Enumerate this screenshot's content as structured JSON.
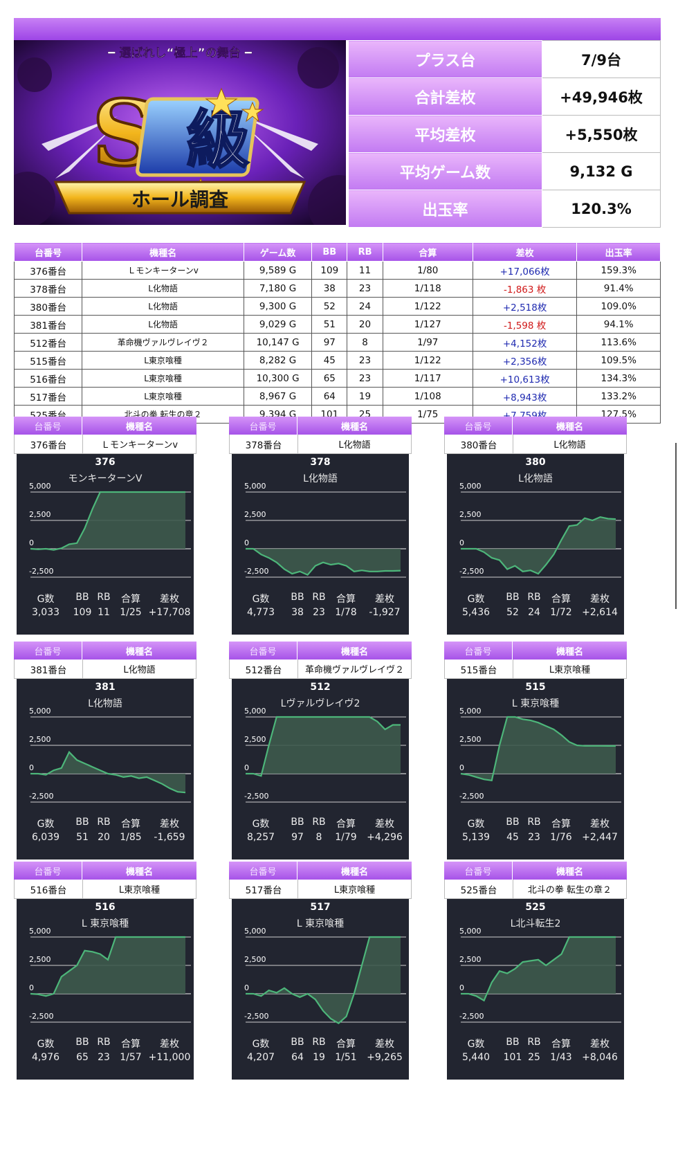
{
  "banner": {
    "tagline": "━ 選ばれし“極上”の舞台 ━",
    "big_letter": "S",
    "kanji": "級",
    "ribbon": "ホール調査"
  },
  "summary": [
    {
      "label": "プラス台",
      "value": "7/9台"
    },
    {
      "label": "合計差枚",
      "value": "+49,946枚"
    },
    {
      "label": "平均差枚",
      "value": "+5,550枚"
    },
    {
      "label": "平均ゲーム数",
      "value": "9,132 G"
    },
    {
      "label": "出玉率",
      "value": "120.3%"
    }
  ],
  "table": {
    "headers": [
      "台番号",
      "機種名",
      "ゲーム数",
      "BB",
      "RB",
      "合算",
      "差枚",
      "出玉率"
    ],
    "rows": [
      [
        "376番台",
        "Ｌモンキーターンⅴ",
        "9,589 G",
        "109",
        "11",
        "1/80",
        "+17,066枚",
        "159.3%"
      ],
      [
        "378番台",
        "L化物語",
        "7,180 G",
        "38",
        "23",
        "1/118",
        "-1,863 枚",
        "91.4%"
      ],
      [
        "380番台",
        "L化物語",
        "9,300 G",
        "52",
        "24",
        "1/122",
        "+2,518枚",
        "109.0%"
      ],
      [
        "381番台",
        "L化物語",
        "9,029 G",
        "51",
        "20",
        "1/127",
        "-1,598 枚",
        "94.1%"
      ],
      [
        "512番台",
        "革命機ヴァルヴレイヴ２",
        "10,147 G",
        "97",
        "8",
        "1/97",
        "+4,152枚",
        "113.6%"
      ],
      [
        "515番台",
        "L東京喰種",
        "8,282 G",
        "45",
        "23",
        "1/122",
        "+2,356枚",
        "109.5%"
      ],
      [
        "516番台",
        "L東京喰種",
        "10,300 G",
        "65",
        "23",
        "1/117",
        "+10,613枚",
        "134.3%"
      ],
      [
        "517番台",
        "L東京喰種",
        "8,967 G",
        "64",
        "19",
        "1/108",
        "+8,943枚",
        "133.2%"
      ],
      [
        "525番台",
        "北斗の拳 転生の章２",
        "9,394 G",
        "101",
        "25",
        "1/75",
        "+7,759枚",
        "127.5%"
      ]
    ]
  },
  "card_headers": {
    "num": "台番号",
    "model": "機種名"
  },
  "stat_labels": [
    "G数",
    "BB",
    "RB",
    "合算",
    "差枚"
  ],
  "colors": {
    "accent": "#a653e8",
    "panel_bg": "#222530",
    "line": "#4db67a",
    "fill": "#3d5a4c",
    "plus": "#1f2ab0",
    "minus": "#d01818"
  },
  "chart_data": [
    {
      "type": "area",
      "title": "376",
      "subtitle": "モンキーターンV",
      "y_ticks": [
        "5,000",
        "2,500",
        "0",
        "-2,500"
      ],
      "ylim": [
        -2500,
        5000
      ],
      "x": [
        0,
        0.05,
        0.1,
        0.15,
        0.2,
        0.25,
        0.3,
        0.35,
        0.4,
        0.45,
        0.5,
        0.55,
        0.6,
        0.65,
        0.7,
        0.75,
        0.8,
        0.85,
        0.9,
        0.95,
        1.0
      ],
      "y": [
        0,
        -50,
        0,
        -100,
        50,
        400,
        500,
        1800,
        3500,
        5000,
        5000,
        5000,
        5000,
        5000,
        5000,
        5000,
        5000,
        5000,
        5000,
        5000,
        5000
      ],
      "stats": {
        "g": "3,033",
        "bb": "109",
        "rb": "11",
        "gosan": "1/25",
        "samai": "+17,708"
      }
    },
    {
      "type": "area",
      "title": "378",
      "subtitle": "L化物語",
      "y_ticks": [
        "5,000",
        "2,500",
        "0",
        "-2,500"
      ],
      "ylim": [
        -2500,
        5000
      ],
      "x": [
        0,
        0.05,
        0.1,
        0.15,
        0.2,
        0.25,
        0.3,
        0.35,
        0.4,
        0.45,
        0.5,
        0.55,
        0.6,
        0.65,
        0.7,
        0.75,
        0.8,
        0.85,
        0.9,
        0.95,
        1.0
      ],
      "y": [
        0,
        0,
        -500,
        -800,
        -1200,
        -1800,
        -2200,
        -2000,
        -2300,
        -1500,
        -1200,
        -1400,
        -1300,
        -1500,
        -2000,
        -1900,
        -2000,
        -2000,
        -1950,
        -1950,
        -1927
      ],
      "stats": {
        "g": "4,773",
        "bb": "38",
        "rb": "23",
        "gosan": "1/78",
        "samai": "-1,927"
      }
    },
    {
      "type": "area",
      "title": "380",
      "subtitle": "L化物語",
      "y_ticks": [
        "5,000",
        "2,500",
        "0",
        "-2,500"
      ],
      "ylim": [
        -2500,
        5000
      ],
      "x": [
        0,
        0.05,
        0.1,
        0.15,
        0.2,
        0.25,
        0.3,
        0.35,
        0.4,
        0.45,
        0.5,
        0.55,
        0.6,
        0.65,
        0.7,
        0.75,
        0.8,
        0.85,
        0.9,
        0.95,
        1.0
      ],
      "y": [
        0,
        0,
        0,
        -300,
        -800,
        -1000,
        -1800,
        -1500,
        -2000,
        -1900,
        -2200,
        -1400,
        -500,
        800,
        2000,
        2100,
        2700,
        2500,
        2800,
        2650,
        2614
      ],
      "stats": {
        "g": "5,436",
        "bb": "52",
        "rb": "24",
        "gosan": "1/72",
        "samai": "+2,614"
      }
    },
    {
      "type": "area",
      "title": "381",
      "subtitle": "L化物語",
      "y_ticks": [
        "5,000",
        "2,500",
        "0",
        "-2,500"
      ],
      "ylim": [
        -2500,
        5000
      ],
      "x": [
        0,
        0.05,
        0.1,
        0.15,
        0.2,
        0.25,
        0.3,
        0.35,
        0.4,
        0.45,
        0.5,
        0.55,
        0.6,
        0.65,
        0.7,
        0.75,
        0.8,
        0.85,
        0.9,
        0.95,
        1.0
      ],
      "y": [
        0,
        0,
        -100,
        300,
        500,
        1900,
        1200,
        900,
        600,
        300,
        0,
        -100,
        -300,
        -200,
        -400,
        -300,
        -600,
        -900,
        -1300,
        -1600,
        -1659
      ],
      "stats": {
        "g": "6,039",
        "bb": "51",
        "rb": "20",
        "gosan": "1/85",
        "samai": "-1,659"
      }
    },
    {
      "type": "area",
      "title": "512",
      "subtitle": "Lヴァルヴレイヴ2",
      "y_ticks": [
        "5,000",
        "2,500",
        "0",
        "-2,500"
      ],
      "ylim": [
        -2500,
        5000
      ],
      "x": [
        0,
        0.05,
        0.1,
        0.15,
        0.2,
        0.25,
        0.3,
        0.35,
        0.4,
        0.45,
        0.5,
        0.55,
        0.6,
        0.65,
        0.7,
        0.75,
        0.8,
        0.85,
        0.9,
        0.95,
        1.0
      ],
      "y": [
        0,
        0,
        -200,
        2500,
        5000,
        5000,
        5000,
        5000,
        5000,
        5000,
        5000,
        5000,
        5000,
        5000,
        5000,
        5000,
        5000,
        4600,
        3900,
        4300,
        4296
      ],
      "stats": {
        "g": "8,257",
        "bb": "97",
        "rb": "8",
        "gosan": "1/79",
        "samai": "+4,296"
      }
    },
    {
      "type": "area",
      "title": "515",
      "subtitle": "L 東京喰種",
      "y_ticks": [
        "5,000",
        "2,500",
        "0",
        "-2,500"
      ],
      "ylim": [
        -2500,
        5000
      ],
      "x": [
        0,
        0.05,
        0.1,
        0.15,
        0.2,
        0.25,
        0.3,
        0.35,
        0.4,
        0.45,
        0.5,
        0.55,
        0.6,
        0.65,
        0.7,
        0.75,
        0.8,
        0.85,
        0.9,
        0.95,
        1.0
      ],
      "y": [
        0,
        -100,
        -300,
        -500,
        -600,
        2500,
        5000,
        5000,
        4800,
        4700,
        4500,
        4200,
        3900,
        3400,
        2800,
        2500,
        2450,
        2450,
        2450,
        2447,
        2447
      ],
      "stats": {
        "g": "5,139",
        "bb": "45",
        "rb": "23",
        "gosan": "1/76",
        "samai": "+2,447"
      }
    },
    {
      "type": "area",
      "title": "516",
      "subtitle": "L 東京喰種",
      "y_ticks": [
        "5,000",
        "2,500",
        "0",
        "-2,500"
      ],
      "ylim": [
        -2500,
        5000
      ],
      "x": [
        0,
        0.05,
        0.1,
        0.15,
        0.2,
        0.25,
        0.3,
        0.35,
        0.4,
        0.45,
        0.5,
        0.55,
        0.6,
        0.65,
        0.7,
        0.75,
        0.8,
        0.85,
        0.9,
        0.95,
        1.0
      ],
      "y": [
        0,
        -50,
        -200,
        0,
        1500,
        2000,
        2500,
        3800,
        3700,
        3500,
        3000,
        5000,
        5000,
        5000,
        5000,
        5000,
        5000,
        5000,
        5000,
        5000,
        5000
      ],
      "stats": {
        "g": "4,976",
        "bb": "65",
        "rb": "23",
        "gosan": "1/57",
        "samai": "+11,000"
      }
    },
    {
      "type": "area",
      "title": "517",
      "subtitle": "L 東京喰種",
      "y_ticks": [
        "5,000",
        "2,500",
        "0",
        "-2,500"
      ],
      "ylim": [
        -2500,
        5000
      ],
      "x": [
        0,
        0.05,
        0.1,
        0.15,
        0.2,
        0.25,
        0.3,
        0.35,
        0.4,
        0.45,
        0.5,
        0.55,
        0.6,
        0.65,
        0.7,
        0.75,
        0.8,
        0.85,
        0.9,
        0.95,
        1.0
      ],
      "y": [
        0,
        0,
        -200,
        300,
        100,
        500,
        0,
        -300,
        0,
        -500,
        -1500,
        -2200,
        -2600,
        -2000,
        0,
        2500,
        5000,
        5000,
        5000,
        5000,
        5000
      ],
      "stats": {
        "g": "4,207",
        "bb": "64",
        "rb": "19",
        "gosan": "1/51",
        "samai": "+9,265"
      }
    },
    {
      "type": "area",
      "title": "525",
      "subtitle": "L北斗転生2",
      "y_ticks": [
        "5,000",
        "2,500",
        "0",
        "-2,500"
      ],
      "ylim": [
        -2500,
        5000
      ],
      "x": [
        0,
        0.05,
        0.1,
        0.15,
        0.2,
        0.25,
        0.3,
        0.35,
        0.4,
        0.45,
        0.5,
        0.55,
        0.6,
        0.65,
        0.7,
        0.75,
        0.8,
        0.85,
        0.9,
        0.95,
        1.0
      ],
      "y": [
        0,
        0,
        -200,
        -600,
        1000,
        2000,
        1800,
        2200,
        2800,
        2900,
        3000,
        2500,
        3000,
        3500,
        5000,
        5000,
        5000,
        5000,
        5000,
        5000,
        5000
      ],
      "stats": {
        "g": "5,440",
        "bb": "101",
        "rb": "25",
        "gosan": "1/43",
        "samai": "+8,046"
      }
    }
  ],
  "cards": [
    {
      "num": "376番台",
      "model": "Ｌモンキーターンⅴ"
    },
    {
      "num": "378番台",
      "model": "L化物語"
    },
    {
      "num": "380番台",
      "model": "L化物語"
    },
    {
      "num": "381番台",
      "model": "L化物語"
    },
    {
      "num": "512番台",
      "model": "革命機ヴァルヴレイヴ２"
    },
    {
      "num": "515番台",
      "model": "L東京喰種"
    },
    {
      "num": "516番台",
      "model": "L東京喰種"
    },
    {
      "num": "517番台",
      "model": "L東京喰種"
    },
    {
      "num": "525番台",
      "model": "北斗の拳 転生の章２"
    }
  ]
}
